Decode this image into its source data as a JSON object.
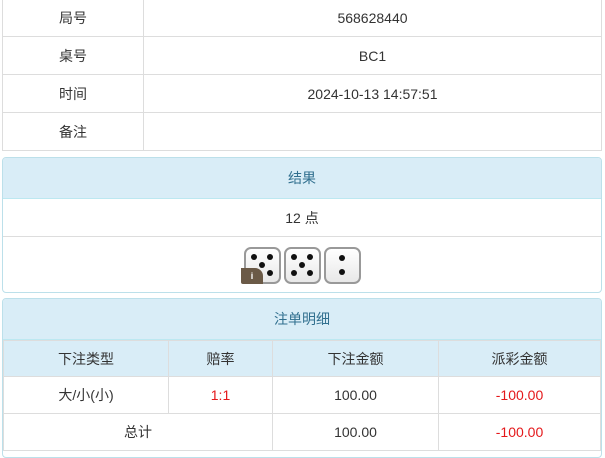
{
  "info": [
    {
      "label": "局号",
      "value": "568628440"
    },
    {
      "label": "桌号",
      "value": "BC1"
    },
    {
      "label": "时间",
      "value": "2024-10-13 14:57:51"
    },
    {
      "label": "备注",
      "value": ""
    }
  ],
  "result": {
    "title": "结果",
    "points": "12 点",
    "dice": [
      5,
      5,
      2
    ],
    "info_badge": "i"
  },
  "bets": {
    "title": "注单明细",
    "headers": [
      "下注类型",
      "赔率",
      "下注金额",
      "派彩金额"
    ],
    "rows": [
      {
        "type": "大/小(小)",
        "odds": "1:1",
        "amount": "100.00",
        "payout": "-100.00"
      }
    ],
    "total": {
      "label": "总计",
      "amount": "100.00",
      "payout": "-100.00"
    }
  },
  "colors": {
    "header_bg": "#d9edf7",
    "negative": "#e4181b"
  }
}
